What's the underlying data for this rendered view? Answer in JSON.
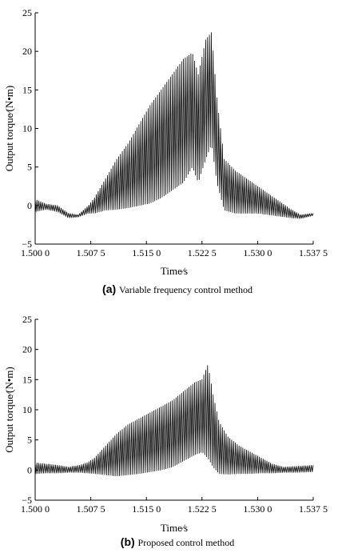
{
  "chart_data": [
    {
      "type": "line",
      "caption_prefix": "(a)",
      "caption_text": "Variable frequency control method",
      "xlabel": "Time∕s",
      "ylabel": "Output torque∕(N•m)",
      "xlim": [
        1.5,
        1.5375
      ],
      "ylim": [
        -5,
        25
      ],
      "x_ticks": [
        1.5,
        1.5075,
        1.515,
        1.5225,
        1.53,
        1.5375
      ],
      "x_tick_labels": [
        "1.500 0",
        "1.507 5",
        "1.515 0",
        "1.522 5",
        "1.530 0",
        "1.537 5"
      ],
      "y_ticks": [
        -5,
        0,
        5,
        10,
        15,
        20,
        25
      ],
      "y_tick_labels": [
        "−5",
        "0",
        "5",
        "10",
        "15",
        "20",
        "25"
      ],
      "grid": false,
      "series": [
        {
          "oscillation_period_s": 0.00025,
          "envelope": {
            "t": [
              1.5,
              1.5015,
              1.503,
              1.5045,
              1.5058,
              1.5072,
              1.508,
              1.5095,
              1.511,
              1.5125,
              1.514,
              1.5155,
              1.517,
              1.5185,
              1.52,
              1.5212,
              1.522,
              1.523,
              1.5238,
              1.5245,
              1.5255,
              1.527,
              1.5285,
              1.53,
              1.5315,
              1.533,
              1.5345,
              1.5358,
              1.5375
            ],
            "upper": [
              0.8,
              0.2,
              0.0,
              -1.0,
              -1.2,
              0.0,
              1.0,
              3.5,
              6.0,
              8.0,
              10.5,
              13.0,
              15.0,
              17.0,
              19.0,
              19.8,
              17.0,
              21.5,
              22.5,
              14.0,
              6.0,
              4.5,
              3.5,
              2.5,
              1.5,
              0.5,
              -0.5,
              -1.2,
              -1.0
            ],
            "lower": [
              -0.8,
              -0.5,
              -0.8,
              -1.6,
              -1.5,
              -1.0,
              -1.0,
              -0.6,
              -0.5,
              -0.3,
              0.0,
              0.3,
              1.0,
              2.0,
              3.0,
              5.0,
              3.0,
              6.0,
              8.0,
              3.0,
              -0.6,
              -1.0,
              -1.0,
              -1.0,
              -1.2,
              -1.4,
              -1.6,
              -1.7,
              -1.3
            ]
          }
        }
      ]
    },
    {
      "type": "line",
      "caption_prefix": "(b)",
      "caption_text": "Proposed control method",
      "xlabel": "Time∕s",
      "ylabel": "Output torque∕(N•m)",
      "xlim": [
        1.5,
        1.5375
      ],
      "ylim": [
        -5,
        25
      ],
      "x_ticks": [
        1.5,
        1.5075,
        1.515,
        1.5225,
        1.53,
        1.5375
      ],
      "x_tick_labels": [
        "1.500 0",
        "1.507 5",
        "1.515 0",
        "1.522 5",
        "1.530 0",
        "1.537 5"
      ],
      "y_ticks": [
        -5,
        0,
        5,
        10,
        15,
        20,
        25
      ],
      "y_tick_labels": [
        "−5",
        "0",
        "5",
        "10",
        "15",
        "20",
        "25"
      ],
      "grid": false,
      "series": [
        {
          "oscillation_period_s": 0.00025,
          "envelope": {
            "t": [
              1.5,
              1.5015,
              1.503,
              1.5045,
              1.506,
              1.507,
              1.508,
              1.5095,
              1.511,
              1.5125,
              1.514,
              1.5155,
              1.517,
              1.5185,
              1.52,
              1.5215,
              1.5225,
              1.5233,
              1.524,
              1.5248,
              1.526,
              1.5275,
              1.529,
              1.5305,
              1.532,
              1.5335,
              1.535,
              1.5375
            ],
            "upper": [
              1.2,
              1.0,
              0.8,
              0.5,
              0.8,
              1.2,
              2.0,
              4.0,
              6.0,
              7.5,
              8.5,
              9.5,
              10.5,
              11.5,
              13.0,
              14.5,
              15.0,
              17.5,
              12.5,
              8.0,
              5.5,
              4.0,
              3.0,
              2.0,
              1.0,
              0.5,
              0.6,
              0.8
            ],
            "lower": [
              -0.6,
              -0.5,
              -0.5,
              -0.4,
              -0.4,
              -0.5,
              -0.6,
              -0.8,
              -1.0,
              -0.8,
              -0.6,
              -0.3,
              0.0,
              0.5,
              1.5,
              2.5,
              3.0,
              2.0,
              0.5,
              -0.6,
              -0.7,
              -0.6,
              -0.6,
              -0.5,
              -0.5,
              -0.4,
              -0.4,
              -0.3
            ]
          }
        }
      ]
    }
  ]
}
